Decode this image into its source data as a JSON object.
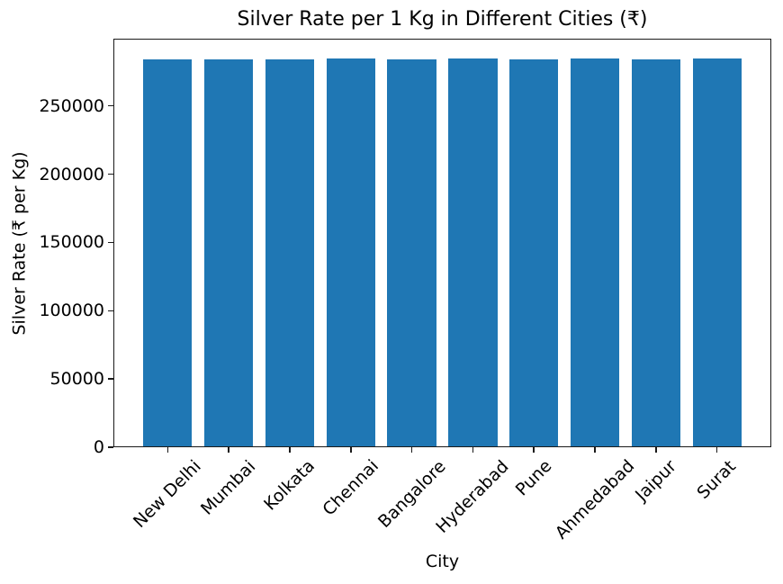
{
  "chart_data": {
    "type": "bar",
    "title": "Silver Rate per 1 Kg in Different Cities (₹)",
    "xlabel": "City",
    "ylabel": "Silver Rate (₹ per Kg)",
    "categories": [
      "New Delhi",
      "Mumbai",
      "Kolkata",
      "Chennai",
      "Bangalore",
      "Hyderabad",
      "Pune",
      "Ahmedabad",
      "Jaipur",
      "Surat"
    ],
    "values": [
      284000,
      284000,
      284000,
      285000,
      284000,
      285000,
      284000,
      285000,
      284000,
      285000
    ],
    "bar_color": "#1f77b4",
    "yticks": [
      0,
      50000,
      100000,
      150000,
      200000,
      250000
    ],
    "ylim": [
      0,
      299250
    ],
    "xtick_rotation_deg": 45,
    "grid": false,
    "legend": "none",
    "background_color": "#ffffff",
    "spine_color": "#1a1a1a"
  }
}
